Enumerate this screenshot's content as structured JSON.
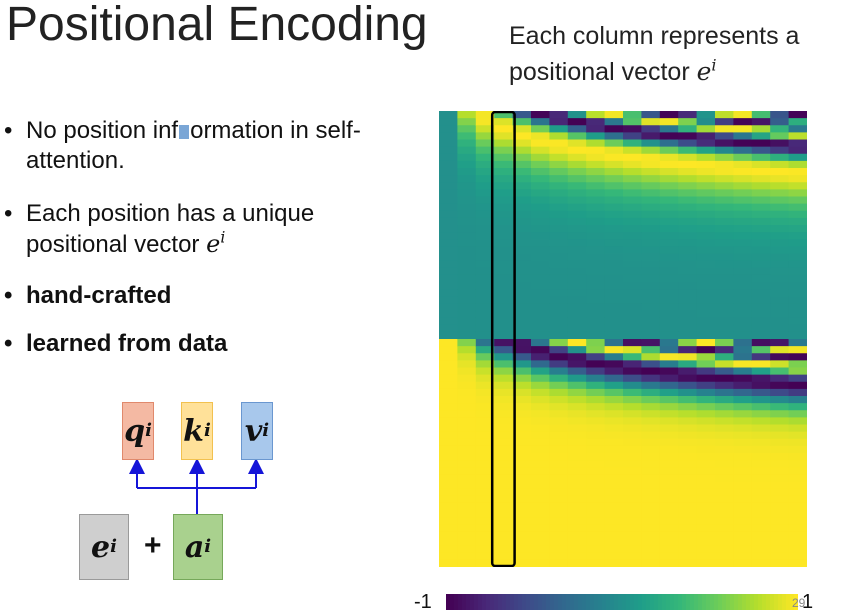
{
  "slide": {
    "title": "Positional Encoding",
    "caption_text": "Each column represents a positional vector",
    "caption_symbol": "e",
    "caption_superscript": "i",
    "slide_number": "29"
  },
  "bullets": [
    {
      "text_before": "No position inf",
      "text_after": "ormation in self-attention.",
      "bold": false
    },
    {
      "text": "Each position has a unique positional vector",
      "symbol": "e",
      "superscript": "i",
      "bold": false
    },
    {
      "text": "hand-crafted",
      "bold": true
    },
    {
      "text": "learned from data",
      "bold": true
    }
  ],
  "diagram": {
    "q": {
      "symbol": "q",
      "superscript": "i"
    },
    "k": {
      "symbol": "k",
      "superscript": "i"
    },
    "v": {
      "symbol": "v",
      "superscript": "i"
    },
    "e": {
      "symbol": "e",
      "superscript": "i"
    },
    "a": {
      "symbol": "a",
      "superscript": "i"
    },
    "plus": "+",
    "colors": {
      "q": "#f4b9a3",
      "k": "#ffe199",
      "v": "#a8c8ec",
      "e": "#cfcfcf",
      "a": "#a9d18e",
      "arrow": "#1515d8"
    }
  },
  "chart_data": {
    "type": "heatmap",
    "colormap": "viridis",
    "colorbar": {
      "min_label": "-1",
      "max_label": "1",
      "range": [
        -1,
        1
      ]
    },
    "highlighted_column": 3
  }
}
